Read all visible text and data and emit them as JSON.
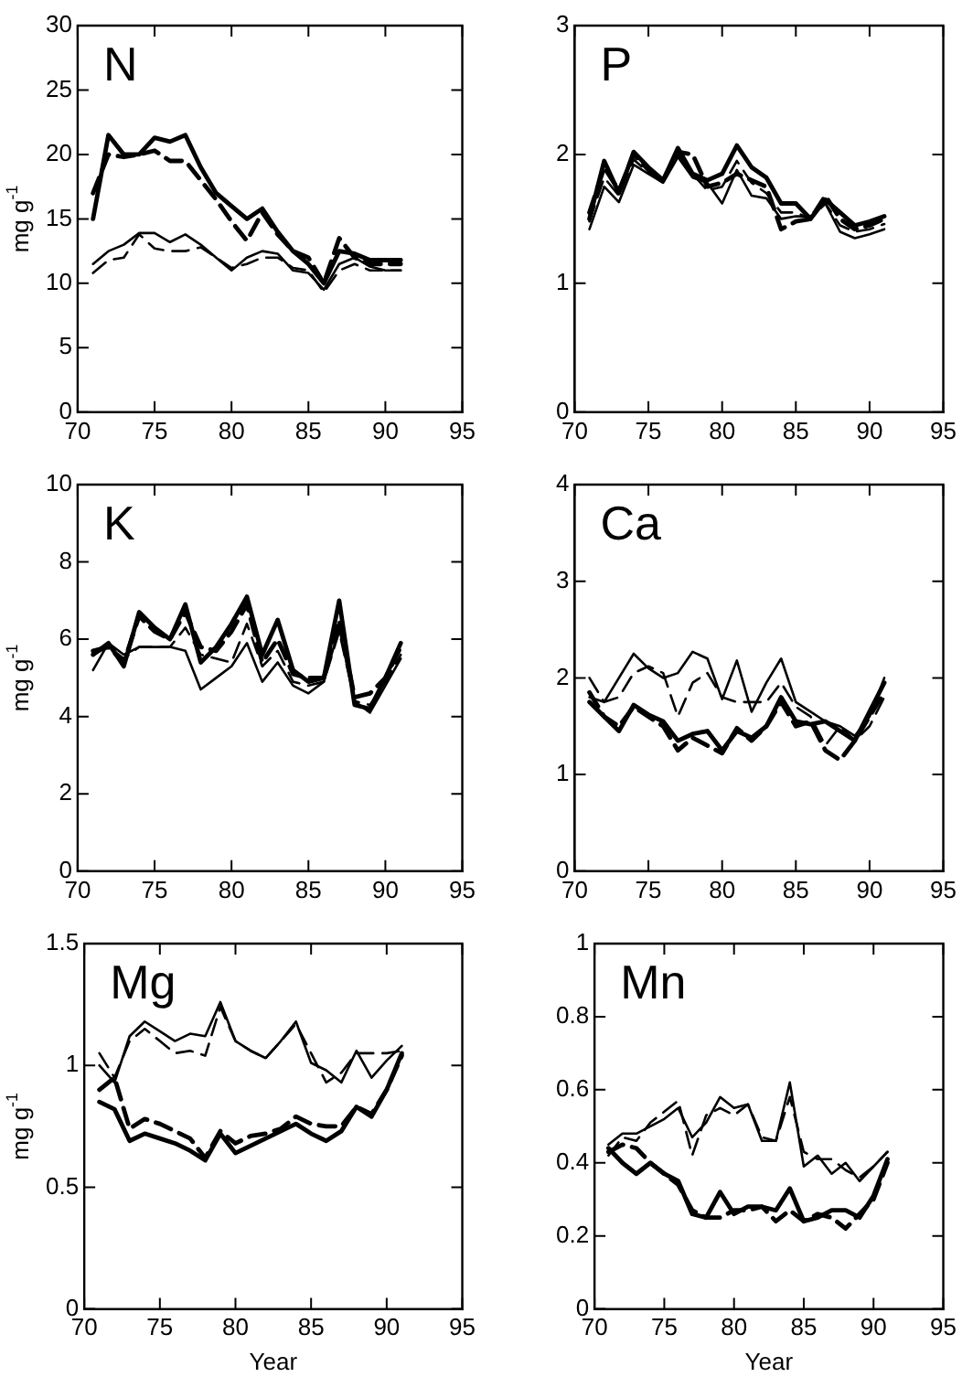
{
  "chart_data": [
    {
      "type": "line",
      "title": "N",
      "ylabel": "mg g$^{-1}$",
      "x": [
        71,
        72,
        73,
        74,
        75,
        76,
        77,
        78,
        79,
        80,
        81,
        82,
        83,
        84,
        85,
        86,
        87,
        88,
        89,
        90,
        91
      ],
      "xlim": [
        70,
        95
      ],
      "xticks": [
        70,
        75,
        80,
        85,
        90,
        95
      ],
      "ylim": [
        0,
        30
      ],
      "yticks": [
        0,
        5,
        10,
        15,
        20,
        25,
        30
      ],
      "grid": false,
      "legend": false,
      "marker": "none",
      "series": [
        {
          "color": "#000000",
          "line_style": "solid",
          "values": [
            15,
            21.5,
            20,
            20,
            21.3,
            21,
            21.5,
            19,
            17,
            16,
            15,
            15.8,
            14,
            12.5,
            11.5,
            10,
            12.5,
            12.3,
            11.8,
            11.8,
            11.8
          ]
        },
        {
          "color": "#000000",
          "line_style": "solid",
          "values": [
            11.5,
            12.5,
            13,
            13.9,
            13.9,
            13.2,
            13.8,
            13,
            12,
            11,
            12,
            12.5,
            12.3,
            11,
            10.8,
            9.5,
            11.5,
            12,
            11.3,
            11,
            11
          ]
        },
        {
          "color": "#000000",
          "line_style": "dashed",
          "values": [
            17,
            20,
            19.8,
            20,
            20.3,
            19.5,
            19.5,
            18,
            16.5,
            14.8,
            13.3,
            15.5,
            13.8,
            12.5,
            12,
            10,
            13.5,
            12,
            11.5,
            11.5,
            11.5
          ]
        },
        {
          "color": "#000000",
          "line_style": "dashed",
          "values": [
            10.8,
            11.8,
            12,
            13.8,
            12.7,
            12.5,
            12.5,
            12.8,
            12,
            11.2,
            11.5,
            12,
            12,
            11.2,
            11,
            9.3,
            11,
            11.5,
            11,
            11,
            11
          ]
        }
      ]
    },
    {
      "type": "line",
      "title": "P",
      "x": [
        71,
        72,
        73,
        74,
        75,
        76,
        77,
        78,
        79,
        80,
        81,
        82,
        83,
        84,
        85,
        86,
        87,
        88,
        89,
        90,
        91
      ],
      "xlim": [
        70,
        95
      ],
      "xticks": [
        70,
        75,
        80,
        85,
        90,
        95
      ],
      "ylim": [
        0,
        3
      ],
      "yticks": [
        0,
        1,
        2,
        3
      ],
      "grid": false,
      "legend": false,
      "marker": "none",
      "series": [
        {
          "color": "#000000",
          "line_style": "solid",
          "values": [
            1.5,
            1.95,
            1.7,
            2.02,
            1.9,
            1.8,
            2.05,
            1.85,
            1.8,
            1.85,
            2.07,
            1.9,
            1.82,
            1.62,
            1.62,
            1.5,
            1.65,
            1.55,
            1.45,
            1.48,
            1.52
          ]
        },
        {
          "color": "#000000",
          "line_style": "solid",
          "values": [
            1.42,
            1.75,
            1.63,
            1.92,
            1.85,
            1.78,
            1.98,
            1.82,
            1.78,
            1.62,
            1.88,
            1.68,
            1.66,
            1.5,
            1.52,
            1.52,
            1.62,
            1.4,
            1.35,
            1.38,
            1.42
          ]
        },
        {
          "color": "#000000",
          "line_style": "dashed",
          "values": [
            1.55,
            1.9,
            1.72,
            2,
            1.88,
            1.8,
            2.02,
            2,
            1.75,
            1.78,
            1.85,
            1.8,
            1.75,
            1.42,
            1.48,
            1.5,
            1.68,
            1.5,
            1.42,
            1.45,
            1.5
          ]
        },
        {
          "color": "#000000",
          "line_style": "dashed",
          "values": [
            1.48,
            1.82,
            1.68,
            1.96,
            1.86,
            1.78,
            2,
            1.85,
            1.72,
            1.75,
            1.95,
            1.78,
            1.7,
            1.55,
            1.55,
            1.5,
            1.62,
            1.45,
            1.4,
            1.42,
            1.46
          ]
        }
      ]
    },
    {
      "type": "line",
      "title": "K",
      "ylabel": "mg g$^{-1}$",
      "x": [
        71,
        72,
        73,
        74,
        75,
        76,
        77,
        78,
        79,
        80,
        81,
        82,
        83,
        84,
        85,
        86,
        87,
        88,
        89,
        90,
        91
      ],
      "xlim": [
        70,
        95
      ],
      "xticks": [
        70,
        75,
        80,
        85,
        90,
        95
      ],
      "ylim": [
        0,
        10
      ],
      "yticks": [
        0,
        2,
        4,
        6,
        8,
        10
      ],
      "grid": false,
      "legend": false,
      "marker": "none",
      "series": [
        {
          "color": "#000000",
          "line_style": "solid",
          "values": [
            5.6,
            5.9,
            5.3,
            6.7,
            6.3,
            6,
            6.9,
            5.4,
            5.8,
            6.4,
            7.1,
            5.6,
            6.5,
            5.2,
            4.9,
            5,
            7,
            4.3,
            4.2,
            5,
            5.9
          ]
        },
        {
          "color": "#000000",
          "line_style": "solid",
          "values": [
            5.2,
            5.9,
            5.6,
            5.8,
            5.8,
            5.8,
            5.7,
            4.7,
            5,
            5.3,
            5.9,
            4.9,
            5.4,
            4.8,
            4.6,
            4.9,
            6.3,
            4.4,
            4.1,
            4.8,
            5.5
          ]
        },
        {
          "color": "#000000",
          "line_style": "dashed",
          "values": [
            5.7,
            5.8,
            5.4,
            6.6,
            6.2,
            6,
            6.7,
            5.8,
            5.7,
            6.2,
            6.9,
            5.4,
            6,
            5.1,
            5,
            5,
            6.5,
            4.5,
            4.6,
            5,
            5.8
          ]
        },
        {
          "color": "#000000",
          "line_style": "dashed",
          "values": [
            5.6,
            5.8,
            5.5,
            5.8,
            5.8,
            5.8,
            6.3,
            5.6,
            5.5,
            5.4,
            6.4,
            5.3,
            5.7,
            4.9,
            4.8,
            4.9,
            6.2,
            4.4,
            4.3,
            4.9,
            5.6
          ]
        }
      ]
    },
    {
      "type": "line",
      "title": "Ca",
      "x": [
        71,
        72,
        73,
        74,
        75,
        76,
        77,
        78,
        79,
        80,
        81,
        82,
        83,
        84,
        85,
        86,
        87,
        88,
        89,
        90,
        91
      ],
      "xlim": [
        70,
        95
      ],
      "xticks": [
        70,
        75,
        80,
        85,
        90,
        95
      ],
      "ylim": [
        0,
        4
      ],
      "yticks": [
        0,
        1,
        2,
        3,
        4
      ],
      "grid": false,
      "legend": false,
      "marker": "none",
      "series": [
        {
          "color": "#000000",
          "line_style": "solid",
          "values": [
            1.75,
            1.6,
            1.45,
            1.72,
            1.62,
            1.55,
            1.35,
            1.42,
            1.45,
            1.25,
            1.45,
            1.38,
            1.5,
            1.8,
            1.55,
            1.52,
            1.55,
            1.45,
            1.35,
            1.65,
            1.95
          ]
        },
        {
          "color": "#000000",
          "line_style": "solid",
          "values": [
            1.8,
            1.75,
            2,
            2.25,
            2.1,
            2,
            2.05,
            2.27,
            2.2,
            1.78,
            2.18,
            1.65,
            1.95,
            2.2,
            1.75,
            1.65,
            1.55,
            1.5,
            1.4,
            1.6,
            2
          ]
        },
        {
          "color": "#000000",
          "line_style": "dashed",
          "values": [
            1.85,
            1.6,
            1.5,
            1.7,
            1.6,
            1.5,
            1.25,
            1.38,
            1.3,
            1.22,
            1.48,
            1.35,
            1.5,
            1.75,
            1.5,
            1.55,
            1.25,
            1.15,
            1.35,
            1.6,
            1.85
          ]
        },
        {
          "color": "#000000",
          "line_style": "dashed",
          "values": [
            2,
            1.75,
            1.8,
            2.05,
            2.12,
            2.05,
            1.6,
            1.95,
            2.05,
            1.8,
            1.75,
            1.75,
            1.75,
            1.95,
            1.7,
            1.6,
            1.3,
            1.5,
            1.35,
            1.5,
            1.8
          ]
        }
      ]
    },
    {
      "type": "line",
      "title": "Mg",
      "ylabel": "mg g$^{-1}$",
      "xlabel": "Year",
      "x": [
        71,
        72,
        73,
        74,
        75,
        76,
        77,
        78,
        79,
        80,
        81,
        82,
        83,
        84,
        85,
        86,
        87,
        88,
        89,
        90,
        91
      ],
      "xlim": [
        70,
        95
      ],
      "xticks": [
        70,
        75,
        80,
        85,
        90,
        95
      ],
      "ylim": [
        0,
        1.5
      ],
      "yticks": [
        0,
        0.5,
        1,
        1.5
      ],
      "grid": false,
      "legend": false,
      "marker": "none",
      "series": [
        {
          "color": "#000000",
          "line_style": "solid",
          "values": [
            0.85,
            0.82,
            0.69,
            0.72,
            0.7,
            0.68,
            0.65,
            0.61,
            0.72,
            0.64,
            0.67,
            0.7,
            0.73,
            0.76,
            0.72,
            0.69,
            0.73,
            0.83,
            0.79,
            0.9,
            1.05
          ]
        },
        {
          "color": "#000000",
          "line_style": "solid",
          "values": [
            1,
            0.93,
            1.12,
            1.18,
            1.14,
            1.1,
            1.13,
            1.12,
            1.26,
            1.1,
            1.06,
            1.03,
            1.1,
            1.18,
            1.01,
            0.98,
            0.93,
            1.06,
            0.95,
            1.02,
            1.08
          ]
        },
        {
          "color": "#000000",
          "line_style": "dashed",
          "values": [
            0.9,
            0.95,
            0.74,
            0.78,
            0.76,
            0.73,
            0.7,
            0.62,
            0.73,
            0.68,
            0.71,
            0.72,
            0.74,
            0.79,
            0.76,
            0.75,
            0.75,
            0.83,
            0.8,
            0.9,
            1.04
          ]
        },
        {
          "color": "#000000",
          "line_style": "dashed",
          "values": [
            1.05,
            0.95,
            1.1,
            1.15,
            1.1,
            1.05,
            1.06,
            1.04,
            1.24,
            1.1,
            1.06,
            1.03,
            1.1,
            1.17,
            1.05,
            0.93,
            0.97,
            1.05,
            1.05,
            1.05,
            1.06
          ]
        }
      ]
    },
    {
      "type": "line",
      "title": "Mn",
      "xlabel": "Year",
      "x": [
        71,
        72,
        73,
        74,
        75,
        76,
        77,
        78,
        79,
        80,
        81,
        82,
        83,
        84,
        85,
        86,
        87,
        88,
        89,
        90,
        91
      ],
      "xlim": [
        70,
        95
      ],
      "xticks": [
        70,
        75,
        80,
        85,
        90,
        95
      ],
      "ylim": [
        0,
        1
      ],
      "yticks": [
        0,
        0.2,
        0.4,
        0.6,
        0.8,
        1
      ],
      "grid": false,
      "legend": false,
      "marker": "none",
      "series": [
        {
          "color": "#000000",
          "line_style": "solid",
          "values": [
            0.44,
            0.4,
            0.37,
            0.4,
            0.37,
            0.35,
            0.26,
            0.25,
            0.32,
            0.26,
            0.28,
            0.28,
            0.27,
            0.33,
            0.24,
            0.25,
            0.27,
            0.27,
            0.25,
            0.31,
            0.41
          ]
        },
        {
          "color": "#000000",
          "line_style": "solid",
          "values": [
            0.45,
            0.48,
            0.48,
            0.5,
            0.52,
            0.55,
            0.47,
            0.51,
            0.58,
            0.55,
            0.56,
            0.46,
            0.46,
            0.62,
            0.39,
            0.42,
            0.37,
            0.4,
            0.35,
            0.39,
            0.43
          ]
        },
        {
          "color": "#000000",
          "line_style": "dashed",
          "values": [
            0.43,
            0.45,
            0.44,
            0.4,
            0.37,
            0.34,
            0.27,
            0.25,
            0.25,
            0.27,
            0.27,
            0.28,
            0.24,
            0.27,
            0.24,
            0.26,
            0.25,
            0.22,
            0.26,
            0.3,
            0.4
          ]
        },
        {
          "color": "#000000",
          "line_style": "dashed",
          "values": [
            0.42,
            0.47,
            0.46,
            0.51,
            0.54,
            0.57,
            0.42,
            0.53,
            0.55,
            0.53,
            0.56,
            0.47,
            0.46,
            0.58,
            0.43,
            0.41,
            0.41,
            0.38,
            0.36,
            0.39,
            0.43
          ]
        }
      ]
    }
  ]
}
